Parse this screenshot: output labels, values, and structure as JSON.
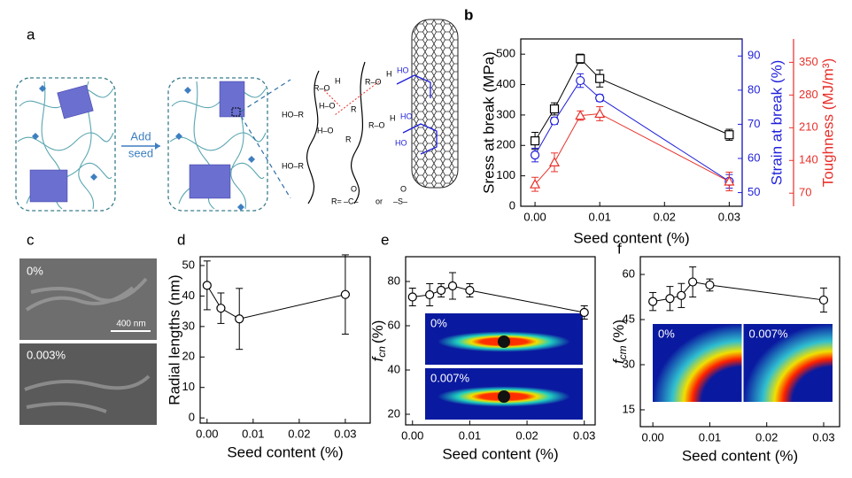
{
  "panel_labels": [
    "a",
    "b",
    "c",
    "d",
    "e",
    "f"
  ],
  "diagram": {
    "arrow_label": [
      "Add",
      "seed"
    ],
    "chem_labels": [
      "R–O",
      "H",
      "H–O",
      "R",
      "HO–R",
      "R–O",
      "H",
      "H–O",
      "R",
      "R–O",
      "H",
      "HO–R",
      "HO",
      "HO",
      "HO"
    ],
    "r_prefix": "R=",
    "carbonyl": "–C–",
    "or": "or",
    "sulfonyl": "–S–",
    "oxygen": "O"
  },
  "sem": {
    "labels": [
      "0%",
      "0.003%"
    ],
    "scale": "400 nm"
  },
  "chart_data": [
    {
      "type": "line",
      "xlabel": "Seed content (%)",
      "ylabel": "Sress at break (MPa)",
      "y2label": "Strain at break (%)",
      "y3label": "Toughness (MJ/m³)",
      "y2color": "#1f1fdc",
      "y3color": "#e8302a",
      "x": [
        0,
        0.003,
        0.007,
        0.01,
        0.03
      ],
      "xlim": [
        -0.0022,
        0.032
      ],
      "xticks": [
        {
          "value": 0,
          "label": "0.00"
        },
        0.01,
        0.02,
        0.03
      ],
      "ylim": [
        0,
        550
      ],
      "yticks": [
        0,
        100,
        200,
        300,
        400,
        500
      ],
      "y2lim": [
        46,
        95
      ],
      "y2ticks": [
        50,
        60,
        70,
        80,
        90
      ],
      "y3lim": [
        42,
        400
      ],
      "y3ticks": [
        70,
        140,
        210,
        280,
        350
      ],
      "series": [
        {
          "name": "Stress",
          "axis": "y",
          "color": "#000000",
          "marker": "square",
          "values": [
            215,
            320,
            485,
            420,
            235
          ],
          "errors": [
            28,
            20,
            15,
            28,
            18
          ]
        },
        {
          "name": "Strain",
          "axis": "y2",
          "color": "#1f1fdc",
          "marker": "circle",
          "values": [
            61,
            71,
            82.8,
            77.7,
            53.3
          ],
          "errors": [
            2,
            1,
            2,
            1,
            2
          ]
        },
        {
          "name": "Toughness",
          "axis": "y3",
          "color": "#e8302a",
          "marker": "triangle",
          "values": [
            89,
            136,
            236,
            240,
            95
          ],
          "errors": [
            15,
            20,
            10,
            15,
            20
          ]
        }
      ]
    },
    {
      "type": "line",
      "xlabel": "Seed content (%)",
      "ylabel": "Radial lengths (nm)",
      "x": [
        0,
        0.003,
        0.007,
        0.03
      ],
      "xlim": [
        -0.0015,
        0.0354
      ],
      "xticks": [
        {
          "value": 0,
          "label": "0.00"
        },
        0.01,
        0.02,
        0.03
      ],
      "ylim": [
        -1.7,
        52.9
      ],
      "yticks": [
        0,
        10,
        20,
        30,
        40,
        50
      ],
      "series": [
        {
          "name": "Radial lengths",
          "axis": "y",
          "color": "#000000",
          "marker": "circle",
          "values": [
            43.5,
            36,
            32.5,
            40.5
          ],
          "errors": [
            8,
            5,
            10,
            13
          ]
        }
      ]
    },
    {
      "type": "line",
      "xlabel": "Seed content (%)",
      "ylabel": "f",
      "ylabel_sub": "cn",
      "ylabel_unit": "(%)",
      "insets": [
        "0%",
        "0.007%"
      ],
      "inset_style": "streak",
      "x": [
        0,
        0.003,
        0.005,
        0.007,
        0.01,
        0.03
      ],
      "xlim": [
        -0.0012,
        0.0319
      ],
      "xticks": [
        {
          "value": 0,
          "label": "0.00"
        },
        0.01,
        0.02,
        0.03
      ],
      "ylim": [
        15.2,
        91.2
      ],
      "yticks": [
        20,
        40,
        60,
        80
      ],
      "series": [
        {
          "name": "fcn",
          "axis": "y",
          "color": "#000000",
          "marker": "circle",
          "values": [
            73,
            74,
            76,
            78,
            76,
            66
          ],
          "errors": [
            4,
            5,
            3,
            6,
            3,
            3
          ]
        }
      ]
    },
    {
      "type": "line",
      "xlabel": "Seed content (%)",
      "ylabel": "f",
      "ylabel_sub": "cm",
      "ylabel_unit": "(%)",
      "insets": [
        "0%",
        "0.007%"
      ],
      "inset_style": "arc",
      "x": [
        0,
        0.003,
        0.005,
        0.007,
        0.01,
        0.03
      ],
      "xlim": [
        -0.0022,
        0.0328
      ],
      "xticks": [
        {
          "value": 0,
          "label": "0.00"
        },
        0.01,
        0.02,
        0.03
      ],
      "ylim": [
        9.4,
        65.9
      ],
      "yticks": [
        15,
        30,
        45,
        60
      ],
      "series": [
        {
          "name": "fcm",
          "axis": "y",
          "color": "#000000",
          "marker": "circle",
          "values": [
            51,
            52,
            53,
            57.5,
            56.5,
            51.5
          ],
          "errors": [
            3,
            4,
            4,
            5,
            2,
            4
          ]
        }
      ]
    }
  ]
}
